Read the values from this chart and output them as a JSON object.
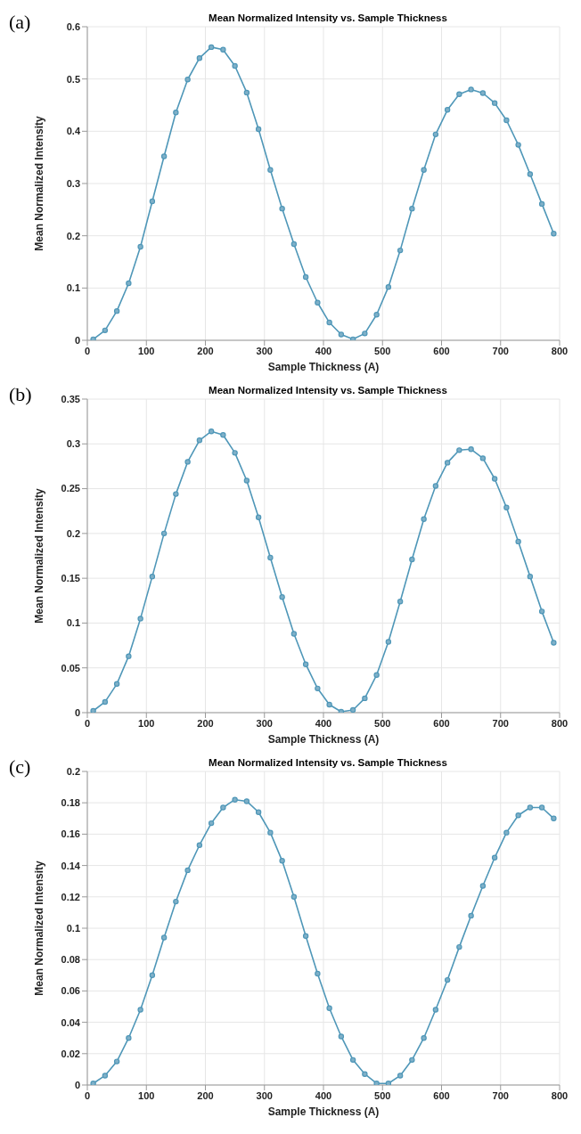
{
  "chart_data": [
    {
      "type": "line",
      "title": "Mean Normalized Intensity vs. Sample Thickness",
      "xlabel": "Sample Thickness (A)",
      "ylabel": "Mean Normalized Intensity",
      "annotations": [
        "(a)"
      ],
      "x": [
        10,
        30,
        50,
        70,
        90,
        110,
        130,
        150,
        170,
        190,
        210,
        230,
        250,
        270,
        290,
        310,
        330,
        350,
        370,
        390,
        410,
        430,
        450,
        470,
        490,
        510,
        530,
        550,
        570,
        590,
        610,
        630,
        650,
        670,
        690,
        710,
        730,
        750,
        770,
        790
      ],
      "series": [
        {
          "color": "#4f97b8",
          "values": [
            0.002,
            0.019,
            0.056,
            0.109,
            0.179,
            0.266,
            0.352,
            0.436,
            0.499,
            0.54,
            0.561,
            0.556,
            0.525,
            0.474,
            0.404,
            0.326,
            0.252,
            0.184,
            0.121,
            0.072,
            0.034,
            0.011,
            0.002,
            0.013,
            0.049,
            0.102,
            0.172,
            0.252,
            0.326,
            0.394,
            0.441,
            0.471,
            0.48,
            0.473,
            0.454,
            0.421,
            0.374,
            0.318,
            0.261,
            0.204
          ]
        }
      ],
      "xlim": [
        0,
        800
      ],
      "xticks": [
        0,
        100,
        200,
        300,
        400,
        500,
        600,
        700,
        800
      ],
      "ylim": [
        0,
        0.6
      ],
      "yticks": [
        0,
        0.1,
        0.2,
        0.3,
        0.4,
        0.5,
        0.6
      ],
      "grid": true,
      "legend": false,
      "marker": "circle",
      "line_style": "solid"
    },
    {
      "type": "line",
      "title": "Mean Normalized Intensity vs. Sample Thickness",
      "xlabel": "Sample Thickness (A)",
      "ylabel": "Mean Normalized Intensity",
      "annotations": [
        "(b)"
      ],
      "x": [
        10,
        30,
        50,
        70,
        90,
        110,
        130,
        150,
        170,
        190,
        210,
        230,
        250,
        270,
        290,
        310,
        330,
        350,
        370,
        390,
        410,
        430,
        450,
        470,
        490,
        510,
        530,
        550,
        570,
        590,
        610,
        630,
        650,
        670,
        690,
        710,
        730,
        750,
        770,
        790
      ],
      "series": [
        {
          "color": "#4f97b8",
          "values": [
            0.002,
            0.012,
            0.032,
            0.063,
            0.105,
            0.152,
            0.2,
            0.244,
            0.28,
            0.304,
            0.314,
            0.31,
            0.29,
            0.259,
            0.218,
            0.173,
            0.129,
            0.088,
            0.054,
            0.027,
            0.009,
            0.001,
            0.003,
            0.016,
            0.042,
            0.079,
            0.124,
            0.171,
            0.216,
            0.253,
            0.279,
            0.293,
            0.294,
            0.284,
            0.261,
            0.229,
            0.191,
            0.152,
            0.113,
            0.078
          ]
        }
      ],
      "xlim": [
        0,
        800
      ],
      "xticks": [
        0,
        100,
        200,
        300,
        400,
        500,
        600,
        700,
        800
      ],
      "ylim": [
        0,
        0.35
      ],
      "yticks": [
        0,
        0.05,
        0.1,
        0.15,
        0.2,
        0.25,
        0.3,
        0.35
      ],
      "grid": true,
      "legend": false,
      "marker": "circle",
      "line_style": "solid"
    },
    {
      "type": "line",
      "title": "Mean Normalized Intensity vs. Sample Thickness",
      "xlabel": "Sample Thickness (A)",
      "ylabel": "Mean Normalized Intensity",
      "annotations": [
        "(c)"
      ],
      "x": [
        10,
        30,
        50,
        70,
        90,
        110,
        130,
        150,
        170,
        190,
        210,
        230,
        250,
        270,
        290,
        310,
        330,
        350,
        370,
        390,
        410,
        430,
        450,
        470,
        490,
        510,
        530,
        550,
        570,
        590,
        610,
        630,
        650,
        670,
        690,
        710,
        730,
        750,
        770,
        790
      ],
      "series": [
        {
          "color": "#4f97b8",
          "values": [
            0.001,
            0.006,
            0.015,
            0.03,
            0.048,
            0.07,
            0.094,
            0.117,
            0.137,
            0.153,
            0.167,
            0.177,
            0.182,
            0.181,
            0.174,
            0.161,
            0.143,
            0.12,
            0.095,
            0.071,
            0.049,
            0.031,
            0.016,
            0.007,
            0.001,
            0.001,
            0.006,
            0.016,
            0.03,
            0.048,
            0.067,
            0.088,
            0.108,
            0.127,
            0.145,
            0.161,
            0.172,
            0.177,
            0.177,
            0.17
          ]
        }
      ],
      "xlim": [
        0,
        800
      ],
      "xticks": [
        0,
        100,
        200,
        300,
        400,
        500,
        600,
        700,
        800
      ],
      "ylim": [
        0,
        0.2
      ],
      "yticks": [
        0,
        0.02,
        0.04,
        0.06,
        0.08,
        0.1,
        0.12,
        0.14,
        0.16,
        0.18,
        0.2
      ],
      "grid": true,
      "legend": false,
      "marker": "circle",
      "line_style": "solid"
    }
  ]
}
